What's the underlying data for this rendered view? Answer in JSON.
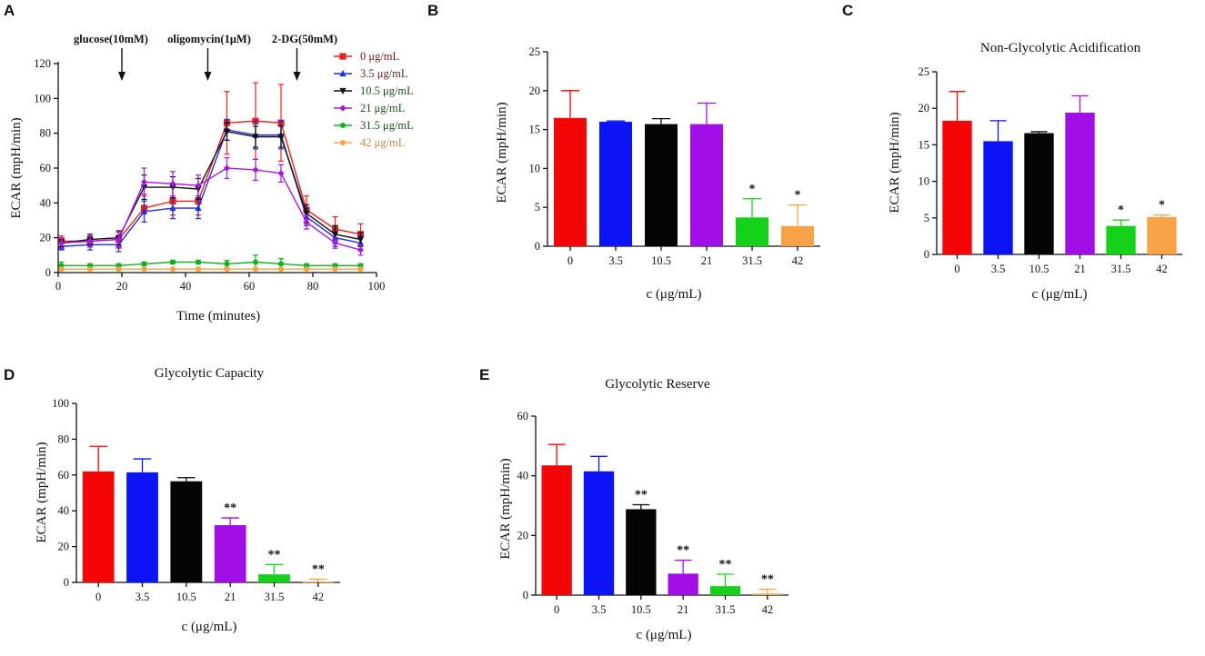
{
  "chart_data": [
    {
      "panel": "A",
      "type": "line",
      "title": "",
      "xlabel": "Time (minutes)",
      "ylabel": "ECAR (mpH/min)",
      "xlim": [
        0,
        100
      ],
      "ylim": [
        0,
        120
      ],
      "xticks": [
        0,
        20,
        40,
        60,
        80,
        100
      ],
      "yticks": [
        0,
        20,
        40,
        60,
        80,
        100,
        120
      ],
      "legend": "top-right",
      "annotations": [
        {
          "label": "glucose(10mM)",
          "x": 20
        },
        {
          "label": "oligomycin(1μM)",
          "x": 47
        },
        {
          "label": "2-DG(50mM)",
          "x": 75
        }
      ],
      "x": [
        1,
        10,
        19,
        27,
        36,
        44,
        53,
        62,
        70,
        78,
        87,
        95
      ],
      "series": [
        {
          "name": "0 μg/mL",
          "color": "#e8231f",
          "legend_color": "#7a1515",
          "marker": "square",
          "values": [
            18,
            18,
            19,
            37,
            41,
            41,
            86,
            87,
            86,
            36,
            25,
            22
          ],
          "errors": [
            3,
            3,
            5,
            8,
            8,
            8,
            18,
            22,
            22,
            8,
            7,
            6
          ]
        },
        {
          "name": "3.5 μg/mL",
          "color": "#1f2fd6",
          "legend_color": "#6a2424",
          "marker": "triangle",
          "values": [
            15,
            16,
            16,
            35,
            37,
            37,
            82,
            79,
            79,
            32,
            20,
            17
          ],
          "errors": [
            2,
            3,
            4,
            6,
            6,
            6,
            6,
            8,
            8,
            5,
            5,
            4
          ]
        },
        {
          "name": "10.5 μg/mL",
          "color": "#111111",
          "legend_color": "#1c4f1c",
          "marker": "triangle-down",
          "values": [
            17,
            19,
            20,
            49,
            49,
            48,
            81,
            78,
            78,
            34,
            22,
            19
          ],
          "errors": [
            2,
            3,
            4,
            7,
            6,
            6,
            5,
            6,
            6,
            5,
            5,
            4
          ]
        },
        {
          "name": "21 μg/mL",
          "color": "#a419e0",
          "legend_color": "#1c4f1c",
          "marker": "diamond",
          "values": [
            17,
            18,
            19,
            52,
            51,
            50,
            60,
            59,
            57,
            29,
            17,
            13
          ],
          "errors": [
            3,
            3,
            4,
            8,
            7,
            6,
            6,
            6,
            5,
            4,
            3,
            3
          ]
        },
        {
          "name": "31.5 μg/mL",
          "color": "#12b01e",
          "legend_color": "#1c4f1c",
          "marker": "circle",
          "values": [
            4,
            4,
            4,
            5,
            6,
            6,
            5,
            6,
            5,
            4,
            4,
            4
          ],
          "errors": [
            2,
            1,
            1,
            1,
            1,
            1,
            2,
            4,
            3,
            1,
            1,
            1
          ]
        },
        {
          "name": "42 μg/mL",
          "color": "#f7a346",
          "legend_color": "#c08a4c",
          "marker": "circle",
          "values": [
            2,
            2,
            2,
            2,
            2,
            2,
            2,
            2,
            2,
            2,
            2,
            2
          ],
          "errors": [
            0.5,
            0.5,
            0.5,
            0.5,
            0.5,
            0.5,
            0.5,
            0.5,
            0.5,
            0.5,
            0.5,
            0.5
          ]
        }
      ]
    },
    {
      "panel": "B",
      "type": "bar",
      "title": "",
      "xlabel": "c (μg/mL)",
      "ylabel": "ECAR (mpH/min)",
      "ylim": [
        0,
        25
      ],
      "yticks": [
        0,
        5,
        10,
        15,
        20,
        25
      ],
      "categories": [
        "0",
        "3.5",
        "10.5",
        "21",
        "31.5",
        "42"
      ],
      "values": [
        16.5,
        16.0,
        15.7,
        15.7,
        3.7,
        2.6
      ],
      "errors": [
        3.5,
        0.1,
        0.7,
        2.7,
        2.4,
        2.7
      ],
      "significance": [
        "",
        "",
        "",
        "",
        "*",
        "*"
      ]
    },
    {
      "panel": "C",
      "type": "bar",
      "title": "Non-Glycolytic Acidification",
      "xlabel": "c (μg/mL)",
      "ylabel": "ECAR (mpH/min)",
      "ylim": [
        0,
        25
      ],
      "yticks": [
        0,
        5,
        10,
        15,
        20,
        25
      ],
      "categories": [
        "0",
        "3.5",
        "10.5",
        "21",
        "31.5",
        "42"
      ],
      "values": [
        18.3,
        15.5,
        16.6,
        19.4,
        3.9,
        5.1
      ],
      "errors": [
        4.0,
        2.8,
        0.2,
        2.3,
        0.8,
        0.3
      ],
      "significance": [
        "",
        "",
        "",
        "",
        "*",
        "*"
      ]
    },
    {
      "panel": "D",
      "type": "bar",
      "title": "Glycolytic Capacity",
      "xlabel": "c (μg/mL)",
      "ylabel": "ECAR (mpH/min)",
      "ylim": [
        0,
        100
      ],
      "yticks": [
        0,
        20,
        40,
        60,
        80,
        100
      ],
      "categories": [
        "0",
        "3.5",
        "10.5",
        "21",
        "31.5",
        "42"
      ],
      "values": [
        62,
        61.5,
        56.5,
        32,
        4.5,
        0.3
      ],
      "errors": [
        14,
        7.5,
        2,
        4,
        5.5,
        1.5
      ],
      "significance": [
        "",
        "",
        "",
        "**",
        "**",
        "**"
      ]
    },
    {
      "panel": "E",
      "type": "bar",
      "title": "Glycolytic Reserve",
      "xlabel": "c (μg/mL)",
      "ylabel": "ECAR (mpH/min)",
      "ylim": [
        0,
        60
      ],
      "yticks": [
        0,
        20,
        40,
        60
      ],
      "categories": [
        "0",
        "3.5",
        "10.5",
        "21",
        "31.5",
        "42"
      ],
      "values": [
        43.5,
        41.5,
        28.8,
        7.2,
        3.0,
        0.5
      ],
      "errors": [
        7,
        5,
        1.5,
        4.5,
        4,
        1.5
      ],
      "significance": [
        "",
        "",
        "**",
        "**",
        "**",
        "**"
      ]
    }
  ],
  "bar_colors": [
    "#f40606",
    "#0a14f5",
    "#050505",
    "#a10fe6",
    "#16d11a",
    "#f8a347"
  ]
}
